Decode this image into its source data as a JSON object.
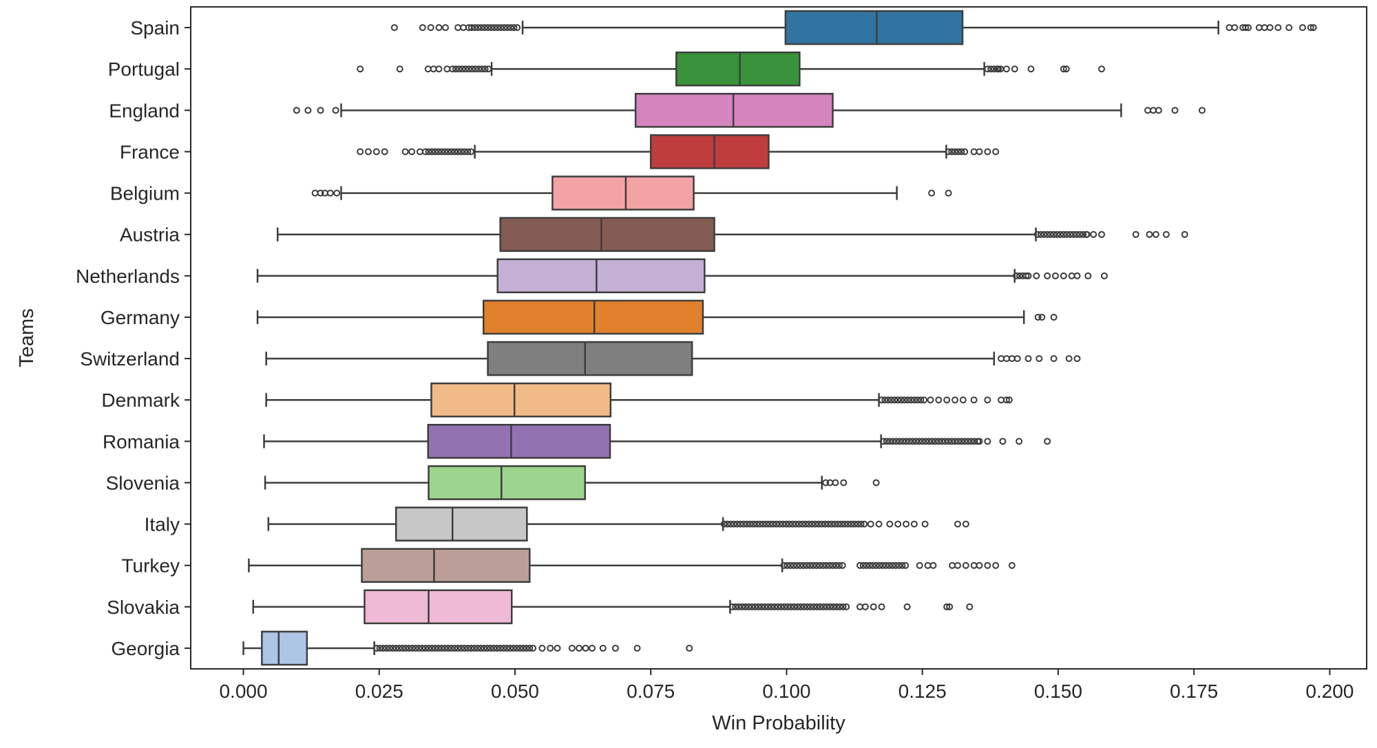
{
  "chart_data": {
    "type": "boxplot",
    "orientation": "horizontal",
    "xlabel": "Win Probability",
    "ylabel": "Teams",
    "xlim": [
      -0.0097,
      0.2068
    ],
    "xticks": [
      0.0,
      0.025,
      0.05,
      0.075,
      0.1,
      0.125,
      0.15,
      0.175,
      0.2
    ],
    "xtick_labels": [
      "0.000",
      "0.025",
      "0.050",
      "0.075",
      "0.100",
      "0.125",
      "0.150",
      "0.175",
      "0.200"
    ],
    "grid": false,
    "series": [
      {
        "team": "Spain",
        "color": "#3274a1",
        "whisker_low": 0.0514,
        "q1": 0.0998,
        "median": 0.1166,
        "q3": 0.1324,
        "whisker_high": 0.1795,
        "outliers": [
          0.0278,
          0.033,
          0.0345,
          0.036,
          0.0372,
          0.0395,
          0.0405,
          0.0415,
          0.1815,
          0.1825,
          0.184,
          0.1845,
          0.185,
          0.187,
          0.188,
          0.189,
          0.1905,
          0.1925,
          0.195,
          0.1965,
          0.197
        ],
        "dense_outlier_ranges": [
          [
            0.042,
            0.051
          ]
        ]
      },
      {
        "team": "Portugal",
        "color": "#3a923a",
        "whisker_low": 0.0457,
        "q1": 0.0797,
        "median": 0.0914,
        "q3": 0.1024,
        "whisker_high": 0.1364,
        "outliers": [
          0.0215,
          0.0288,
          0.034,
          0.035,
          0.036,
          0.0375,
          0.139,
          0.1405,
          0.142,
          0.145,
          0.151,
          0.1515,
          0.158
        ],
        "dense_outlier_ranges": [
          [
            0.0385,
            0.0455
          ],
          [
            0.137,
            0.1395
          ]
        ]
      },
      {
        "team": "England",
        "color": "#d684bd",
        "whisker_low": 0.018,
        "q1": 0.0722,
        "median": 0.0902,
        "q3": 0.1085,
        "whisker_high": 0.1616,
        "outliers": [
          0.0098,
          0.0119,
          0.0142,
          0.017,
          0.1665,
          0.1675,
          0.1685,
          0.1715,
          0.1765
        ],
        "dense_outlier_ranges": []
      },
      {
        "team": "France",
        "color": "#c03d3e",
        "whisker_low": 0.0426,
        "q1": 0.075,
        "median": 0.0867,
        "q3": 0.0967,
        "whisker_high": 0.1294,
        "outliers": [
          0.0215,
          0.023,
          0.0245,
          0.026,
          0.0298,
          0.031,
          0.0325,
          0.1345,
          0.1355,
          0.137,
          0.1385
        ],
        "dense_outlier_ranges": [
          [
            0.0335,
            0.0425
          ],
          [
            0.1298,
            0.133
          ]
        ]
      },
      {
        "team": "Belgium",
        "color": "#f4a3a4",
        "whisker_low": 0.018,
        "q1": 0.0569,
        "median": 0.0704,
        "q3": 0.0829,
        "whisker_high": 0.1203,
        "outliers": [
          0.0132,
          0.0142,
          0.015,
          0.016,
          0.0172,
          0.1267,
          0.1298
        ],
        "dense_outlier_ranges": []
      },
      {
        "team": "Austria",
        "color": "#845b53",
        "whisker_low": 0.0063,
        "q1": 0.0473,
        "median": 0.0659,
        "q3": 0.0867,
        "whisker_high": 0.1459,
        "outliers": [
          0.1553,
          0.1565,
          0.158,
          0.1643,
          0.1668,
          0.168,
          0.1699,
          0.1733
        ],
        "dense_outlier_ranges": [
          [
            0.1462,
            0.1555
          ]
        ]
      },
      {
        "team": "Netherlands",
        "color": "#c5b0d5",
        "whisker_low": 0.0026,
        "q1": 0.0468,
        "median": 0.065,
        "q3": 0.0849,
        "whisker_high": 0.142,
        "outliers": [
          0.1445,
          0.146,
          0.148,
          0.1495,
          0.151,
          0.1525,
          0.1535,
          0.1555,
          0.1585
        ],
        "dense_outlier_ranges": [
          [
            0.1423,
            0.1445
          ]
        ]
      },
      {
        "team": "Germany",
        "color": "#e1812c",
        "whisker_low": 0.0026,
        "q1": 0.0442,
        "median": 0.0646,
        "q3": 0.0846,
        "whisker_high": 0.1437,
        "outliers": [
          0.1463,
          0.147,
          0.1492
        ],
        "dense_outlier_ranges": []
      },
      {
        "team": "Switzerland",
        "color": "#7f7f7f",
        "whisker_low": 0.0042,
        "q1": 0.045,
        "median": 0.0629,
        "q3": 0.0826,
        "whisker_high": 0.1382,
        "outliers": [
          0.1395,
          0.1405,
          0.1415,
          0.1425,
          0.1445,
          0.1465,
          0.1492,
          0.152,
          0.1535
        ],
        "dense_outlier_ranges": []
      },
      {
        "team": "Denmark",
        "color": "#f0bb87",
        "whisker_low": 0.0042,
        "q1": 0.0346,
        "median": 0.0499,
        "q3": 0.0676,
        "whisker_high": 0.117,
        "outliers": [
          0.1265,
          0.128,
          0.1295,
          0.131,
          0.1325,
          0.1345,
          0.137,
          0.1395,
          0.1405,
          0.141
        ],
        "dense_outlier_ranges": [
          [
            0.1175,
            0.1255
          ]
        ]
      },
      {
        "team": "Romania",
        "color": "#9372b2",
        "whisker_low": 0.0038,
        "q1": 0.034,
        "median": 0.0493,
        "q3": 0.0675,
        "whisker_high": 0.1174,
        "outliers": [
          0.1355,
          0.137,
          0.1398,
          0.1428,
          0.148
        ],
        "dense_outlier_ranges": [
          [
            0.1178,
            0.1355
          ]
        ]
      },
      {
        "team": "Slovenia",
        "color": "#9ed58e",
        "whisker_low": 0.004,
        "q1": 0.0341,
        "median": 0.0475,
        "q3": 0.0629,
        "whisker_high": 0.1065,
        "outliers": [
          0.1072,
          0.108,
          0.109,
          0.1105,
          0.1165
        ],
        "dense_outlier_ranges": []
      },
      {
        "team": "Italy",
        "color": "#c7c7c7",
        "whisker_low": 0.0046,
        "q1": 0.0281,
        "median": 0.0385,
        "q3": 0.0522,
        "whisker_high": 0.0883,
        "outliers": [
          0.1155,
          0.117,
          0.119,
          0.1205,
          0.122,
          0.1235,
          0.1255,
          0.1315,
          0.133
        ],
        "dense_outlier_ranges": [
          [
            0.0885,
            0.1145
          ]
        ]
      },
      {
        "team": "Turkey",
        "color": "#bc9e99",
        "whisker_low": 0.001,
        "q1": 0.0218,
        "median": 0.0351,
        "q3": 0.0527,
        "whisker_high": 0.0992,
        "outliers": [
          0.1245,
          0.126,
          0.127,
          0.1305,
          0.1315,
          0.133,
          0.1345,
          0.1355,
          0.137,
          0.1385,
          0.1415
        ],
        "dense_outlier_ranges": [
          [
            0.0995,
            0.1105
          ],
          [
            0.1135,
            0.122
          ]
        ]
      },
      {
        "team": "Slovakia",
        "color": "#eebad6",
        "whisker_low": 0.0018,
        "q1": 0.0223,
        "median": 0.0341,
        "q3": 0.0494,
        "whisker_high": 0.0896,
        "outliers": [
          0.1135,
          0.1145,
          0.116,
          0.1175,
          0.1222,
          0.1295,
          0.13,
          0.1337
        ],
        "dense_outlier_ranges": [
          [
            0.09,
            0.1115
          ]
        ]
      },
      {
        "team": "Georgia",
        "color": "#adc6e6",
        "whisker_low": 0.0,
        "q1": 0.0034,
        "median": 0.0065,
        "q3": 0.0117,
        "whisker_high": 0.0241,
        "outliers": [
          0.055,
          0.0565,
          0.0578,
          0.0605,
          0.0618,
          0.063,
          0.0642,
          0.0662,
          0.0685,
          0.0725,
          0.0821
        ],
        "dense_outlier_ranges": [
          [
            0.0245,
            0.0535
          ]
        ]
      }
    ]
  }
}
